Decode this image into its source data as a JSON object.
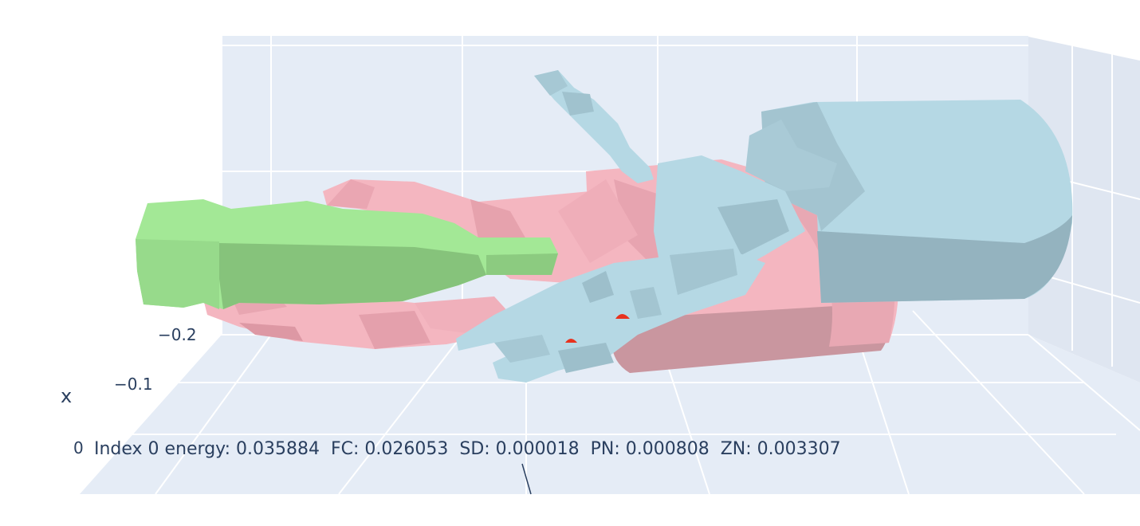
{
  "scene": {
    "background_panel_color": "#e5ecf6",
    "grid_color": "#ffffff",
    "text_color": "#2a3f5f",
    "axis": {
      "title": "x",
      "ticks": [
        "−0.2",
        "−0.1",
        "0"
      ]
    },
    "annotation": "Index 0 energy: 0.035884  FC: 0.026053  SD: 0.000018  PN: 0.000808  ZN: 0.003307",
    "meshes": [
      {
        "name": "object-bottle",
        "color": "#a3e896"
      },
      {
        "name": "hand-pink",
        "color": "#f4b6c0"
      },
      {
        "name": "hand-light-blue",
        "color": "#b5d8e4"
      },
      {
        "name": "contact-points",
        "color": "#e8321e"
      }
    ]
  }
}
